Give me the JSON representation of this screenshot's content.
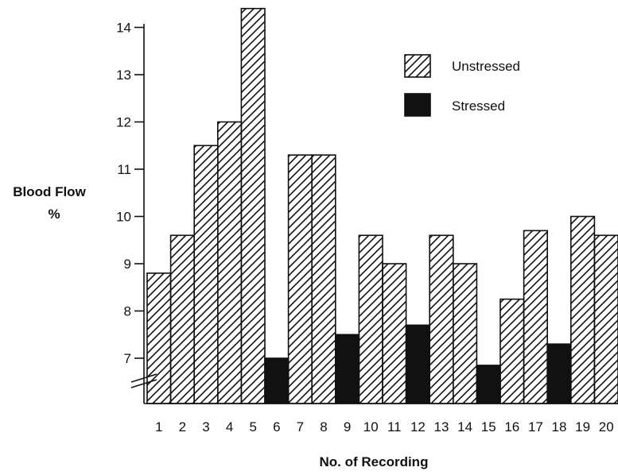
{
  "chart_data": {
    "type": "bar",
    "categories": [
      "1",
      "2",
      "3",
      "4",
      "5",
      "6",
      "7",
      "8",
      "9",
      "10",
      "11",
      "12",
      "13",
      "14",
      "15",
      "16",
      "17",
      "18",
      "19",
      "20"
    ],
    "values": [
      8.8,
      9.6,
      11.5,
      12.0,
      14.4,
      7.0,
      11.3,
      11.3,
      7.5,
      9.6,
      9.0,
      7.7,
      9.6,
      9.0,
      6.85,
      8.25,
      9.7,
      7.3,
      10.0,
      9.6
    ],
    "groups": [
      "Unstressed",
      "Unstressed",
      "Unstressed",
      "Unstressed",
      "Unstressed",
      "Stressed",
      "Unstressed",
      "Unstressed",
      "Stressed",
      "Unstressed",
      "Unstressed",
      "Stressed",
      "Unstressed",
      "Unstressed",
      "Stressed",
      "Unstressed",
      "Unstressed",
      "Stressed",
      "Unstressed",
      "Unstressed"
    ],
    "series": [
      {
        "name": "Unstressed",
        "fill": "hatched"
      },
      {
        "name": "Stressed",
        "fill": "solid"
      }
    ],
    "ylabel_line1": "Blood Flow",
    "ylabel_line2": "%",
    "xlabel": "No. of Recording",
    "yticks": [
      "7",
      "8",
      "9",
      "10",
      "11",
      "12",
      "13",
      "14"
    ],
    "ylim": [
      6,
      14.4
    ],
    "axis_break": true,
    "legend_position": "top-right",
    "colors": {
      "ink": "#111111",
      "stressed": "#111111",
      "background": "#ffffff"
    }
  }
}
